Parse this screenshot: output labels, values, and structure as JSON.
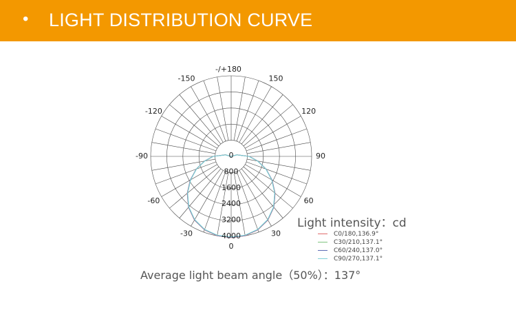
{
  "header": {
    "bullet": "•",
    "title": "LIGHT DISTRIBUTION CURVE"
  },
  "chart_data": {
    "type": "polar-line",
    "angle_labels": [
      {
        "angle": 180,
        "text": "-/+180"
      },
      {
        "angle": 150,
        "text": "150"
      },
      {
        "angle": -150,
        "text": "-150"
      },
      {
        "angle": 120,
        "text": "120"
      },
      {
        "angle": -120,
        "text": "-120"
      },
      {
        "angle": 90,
        "text": "90"
      },
      {
        "angle": -90,
        "text": "-90"
      },
      {
        "angle": 60,
        "text": "60"
      },
      {
        "angle": -60,
        "text": "-60"
      },
      {
        "angle": 30,
        "text": "30"
      },
      {
        "angle": -30,
        "text": "-30"
      },
      {
        "angle": 0,
        "text": "0"
      }
    ],
    "radial_ticks": [
      "0",
      "800",
      "1600",
      "2400",
      "3200",
      "4000"
    ],
    "radial_max": 4000,
    "unit_label": "Light intensity：cd",
    "series": [
      {
        "name": "C0/180,136.9°",
        "color": "#e06a6a",
        "angles": [
          -120,
          -105,
          -90,
          -80,
          -70,
          -60,
          -50,
          -40,
          -30,
          -20,
          -10,
          0,
          10,
          20,
          30,
          40,
          50,
          60,
          70,
          80,
          90,
          105,
          120
        ],
        "values": [
          0,
          300,
          900,
          1350,
          1850,
          2350,
          2850,
          3300,
          3650,
          3880,
          4000,
          4030,
          4000,
          3880,
          3650,
          3300,
          2850,
          2350,
          1850,
          1350,
          900,
          300,
          0
        ]
      },
      {
        "name": "C30/210,137.1°",
        "color": "#7fc47f",
        "angles": [
          -120,
          -105,
          -90,
          -80,
          -70,
          -60,
          -50,
          -40,
          -30,
          -20,
          -10,
          0,
          10,
          20,
          30,
          40,
          50,
          60,
          70,
          80,
          90,
          105,
          120
        ],
        "values": [
          0,
          290,
          890,
          1340,
          1840,
          2330,
          2830,
          3280,
          3630,
          3860,
          3980,
          4010,
          3980,
          3860,
          3630,
          3280,
          2830,
          2330,
          1840,
          1340,
          890,
          290,
          0
        ]
      },
      {
        "name": "C60/240,137.0°",
        "color": "#5b6bb5",
        "angles": [
          -120,
          -105,
          -90,
          -80,
          -70,
          -60,
          -50,
          -40,
          -30,
          -20,
          -10,
          0,
          10,
          20,
          30,
          40,
          50,
          60,
          70,
          80,
          90,
          105,
          120
        ],
        "values": [
          0,
          295,
          895,
          1345,
          1845,
          2340,
          2840,
          3290,
          3640,
          3870,
          3990,
          4020,
          3990,
          3870,
          3640,
          3290,
          2840,
          2340,
          1845,
          1345,
          895,
          295,
          0
        ]
      },
      {
        "name": "C90/270,137.1°",
        "color": "#7fd0d6",
        "angles": [
          -120,
          -105,
          -90,
          -80,
          -70,
          -60,
          -50,
          -40,
          -30,
          -20,
          -10,
          0,
          10,
          20,
          30,
          40,
          50,
          60,
          70,
          80,
          90,
          105,
          120
        ],
        "values": [
          0,
          285,
          885,
          1335,
          1835,
          2325,
          2825,
          3275,
          3625,
          3855,
          3975,
          4005,
          3975,
          3855,
          3625,
          3275,
          2825,
          2325,
          1835,
          1335,
          885,
          285,
          0
        ]
      }
    ]
  },
  "footer": {
    "beam_angle_text": "Average light beam angle（50%）：137°"
  }
}
